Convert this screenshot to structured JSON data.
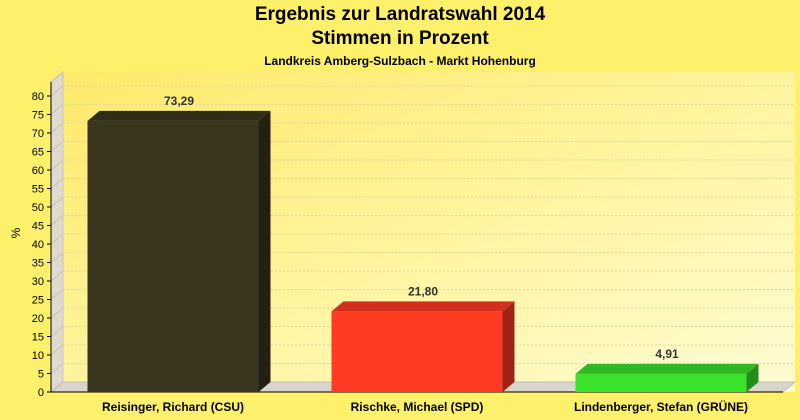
{
  "chart_data": {
    "type": "bar",
    "title": "Ergebnis zur Landratswahl 2014",
    "subtitle": "Stimmen in Prozent",
    "caption": "Landkreis Amberg-Sulzbach - Markt Hohenburg",
    "ylabel": "%",
    "xlabel": "",
    "ylim": [
      0,
      80
    ],
    "yticks": [
      "0",
      "5",
      "10",
      "15",
      "20",
      "25",
      "30",
      "35",
      "40",
      "45",
      "50",
      "55",
      "60",
      "65",
      "70",
      "75",
      "80"
    ],
    "categories": [
      "Reisinger, Richard (CSU)",
      "Rischke, Michael (SPD)",
      "Lindenberger, Stefan (GRÜNE)"
    ],
    "values": [
      73.29,
      21.8,
      4.91
    ],
    "value_labels": [
      "73,29",
      "21,80",
      "4,91"
    ],
    "colors": [
      "#3a3620",
      "#ff3b24",
      "#3ae22a"
    ],
    "grid": true,
    "legend": "none"
  }
}
